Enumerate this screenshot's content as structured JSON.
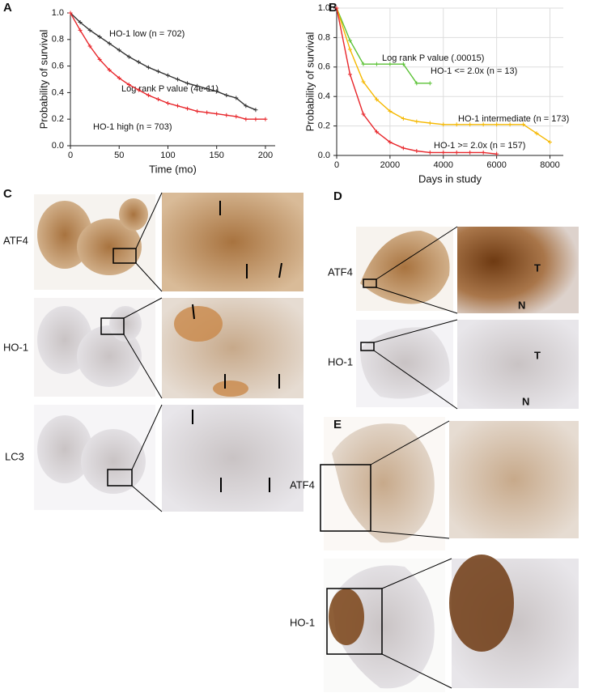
{
  "chart_data": [
    {
      "type": "line",
      "panel": "A",
      "x": [
        0,
        10,
        20,
        30,
        40,
        50,
        60,
        70,
        80,
        90,
        100,
        110,
        120,
        130,
        140,
        150,
        160,
        170,
        180,
        190,
        200
      ],
      "series": [
        {
          "name": "HO-1 low (n = 702)",
          "color": "#333333",
          "values": [
            1.0,
            0.93,
            0.87,
            0.82,
            0.77,
            0.72,
            0.67,
            0.63,
            0.59,
            0.56,
            0.53,
            0.5,
            0.47,
            0.45,
            0.43,
            0.41,
            0.38,
            0.36,
            0.3,
            0.27,
            null
          ]
        },
        {
          "name": "HO-1 high (n = 703)",
          "color": "#e8262b",
          "values": [
            1.0,
            0.87,
            0.75,
            0.65,
            0.57,
            0.51,
            0.46,
            0.42,
            0.38,
            0.35,
            0.32,
            0.3,
            0.28,
            0.26,
            0.25,
            0.24,
            0.23,
            0.22,
            0.2,
            0.2,
            0.2
          ]
        }
      ],
      "annotation": "Log rank P value (4e-11)",
      "xlabel": "Time (mo)",
      "ylabel": "Probability of survival",
      "xlim": [
        0,
        210
      ],
      "xticks": [
        0,
        50,
        100,
        150,
        200
      ],
      "ylim": [
        0,
        1.0
      ],
      "yticks": [
        {
          "value": 0,
          "label": "0.0"
        },
        0.2,
        0.4,
        0.6,
        0.8,
        {
          "value": 1,
          "label": "1.0"
        }
      ],
      "grid": false
    },
    {
      "type": "line",
      "panel": "B",
      "x": [
        0,
        500,
        1000,
        1500,
        2000,
        2500,
        3000,
        3500,
        4000,
        4500,
        5000,
        5500,
        6000,
        6500,
        7000,
        7500,
        8000
      ],
      "series": [
        {
          "name": "HO-1 <= 2.0x (n = 13)",
          "color": "#5bc236",
          "values": [
            1.0,
            0.78,
            0.62,
            0.62,
            0.62,
            0.62,
            0.49,
            0.49,
            null,
            null,
            null,
            null,
            null,
            null,
            null,
            null,
            null
          ]
        },
        {
          "name": "HO-1 intermediate (n = 173)",
          "color": "#f5b800",
          "values": [
            1.0,
            0.72,
            0.5,
            0.38,
            0.3,
            0.25,
            0.23,
            0.22,
            0.21,
            0.21,
            0.21,
            0.21,
            0.21,
            0.21,
            0.21,
            0.15,
            0.09
          ]
        },
        {
          "name": "HO-1 >= 2.0x (n = 157)",
          "color": "#e8262b",
          "values": [
            1.0,
            0.55,
            0.28,
            0.16,
            0.09,
            0.05,
            0.03,
            0.02,
            0.02,
            0.02,
            0.02,
            0.02,
            0.01,
            null,
            null,
            null,
            null
          ]
        }
      ],
      "annotation": "Log rank P value (.00015)",
      "xlabel": "Days in study",
      "ylabel": "Probability of survival",
      "xlim": [
        0,
        8500
      ],
      "xticks": [
        0,
        2000,
        4000,
        6000,
        8000
      ],
      "ylim": [
        0,
        1.0
      ],
      "yticks": [
        {
          "value": 0,
          "label": "0.0"
        },
        0.2,
        0.4,
        0.6,
        0.8,
        {
          "value": 1,
          "label": "1.0"
        }
      ],
      "grid": true
    }
  ],
  "panels": {
    "C": {
      "letter": "C",
      "rows": [
        "ATF4",
        "HO-1",
        "LC3"
      ]
    },
    "D": {
      "letter": "D",
      "rows": [
        "ATF4",
        "HO-1"
      ],
      "marks": [
        "T",
        "N",
        "T",
        "N"
      ]
    },
    "E": {
      "letter": "E",
      "rows": [
        "ATF4",
        "HO-1"
      ]
    }
  }
}
